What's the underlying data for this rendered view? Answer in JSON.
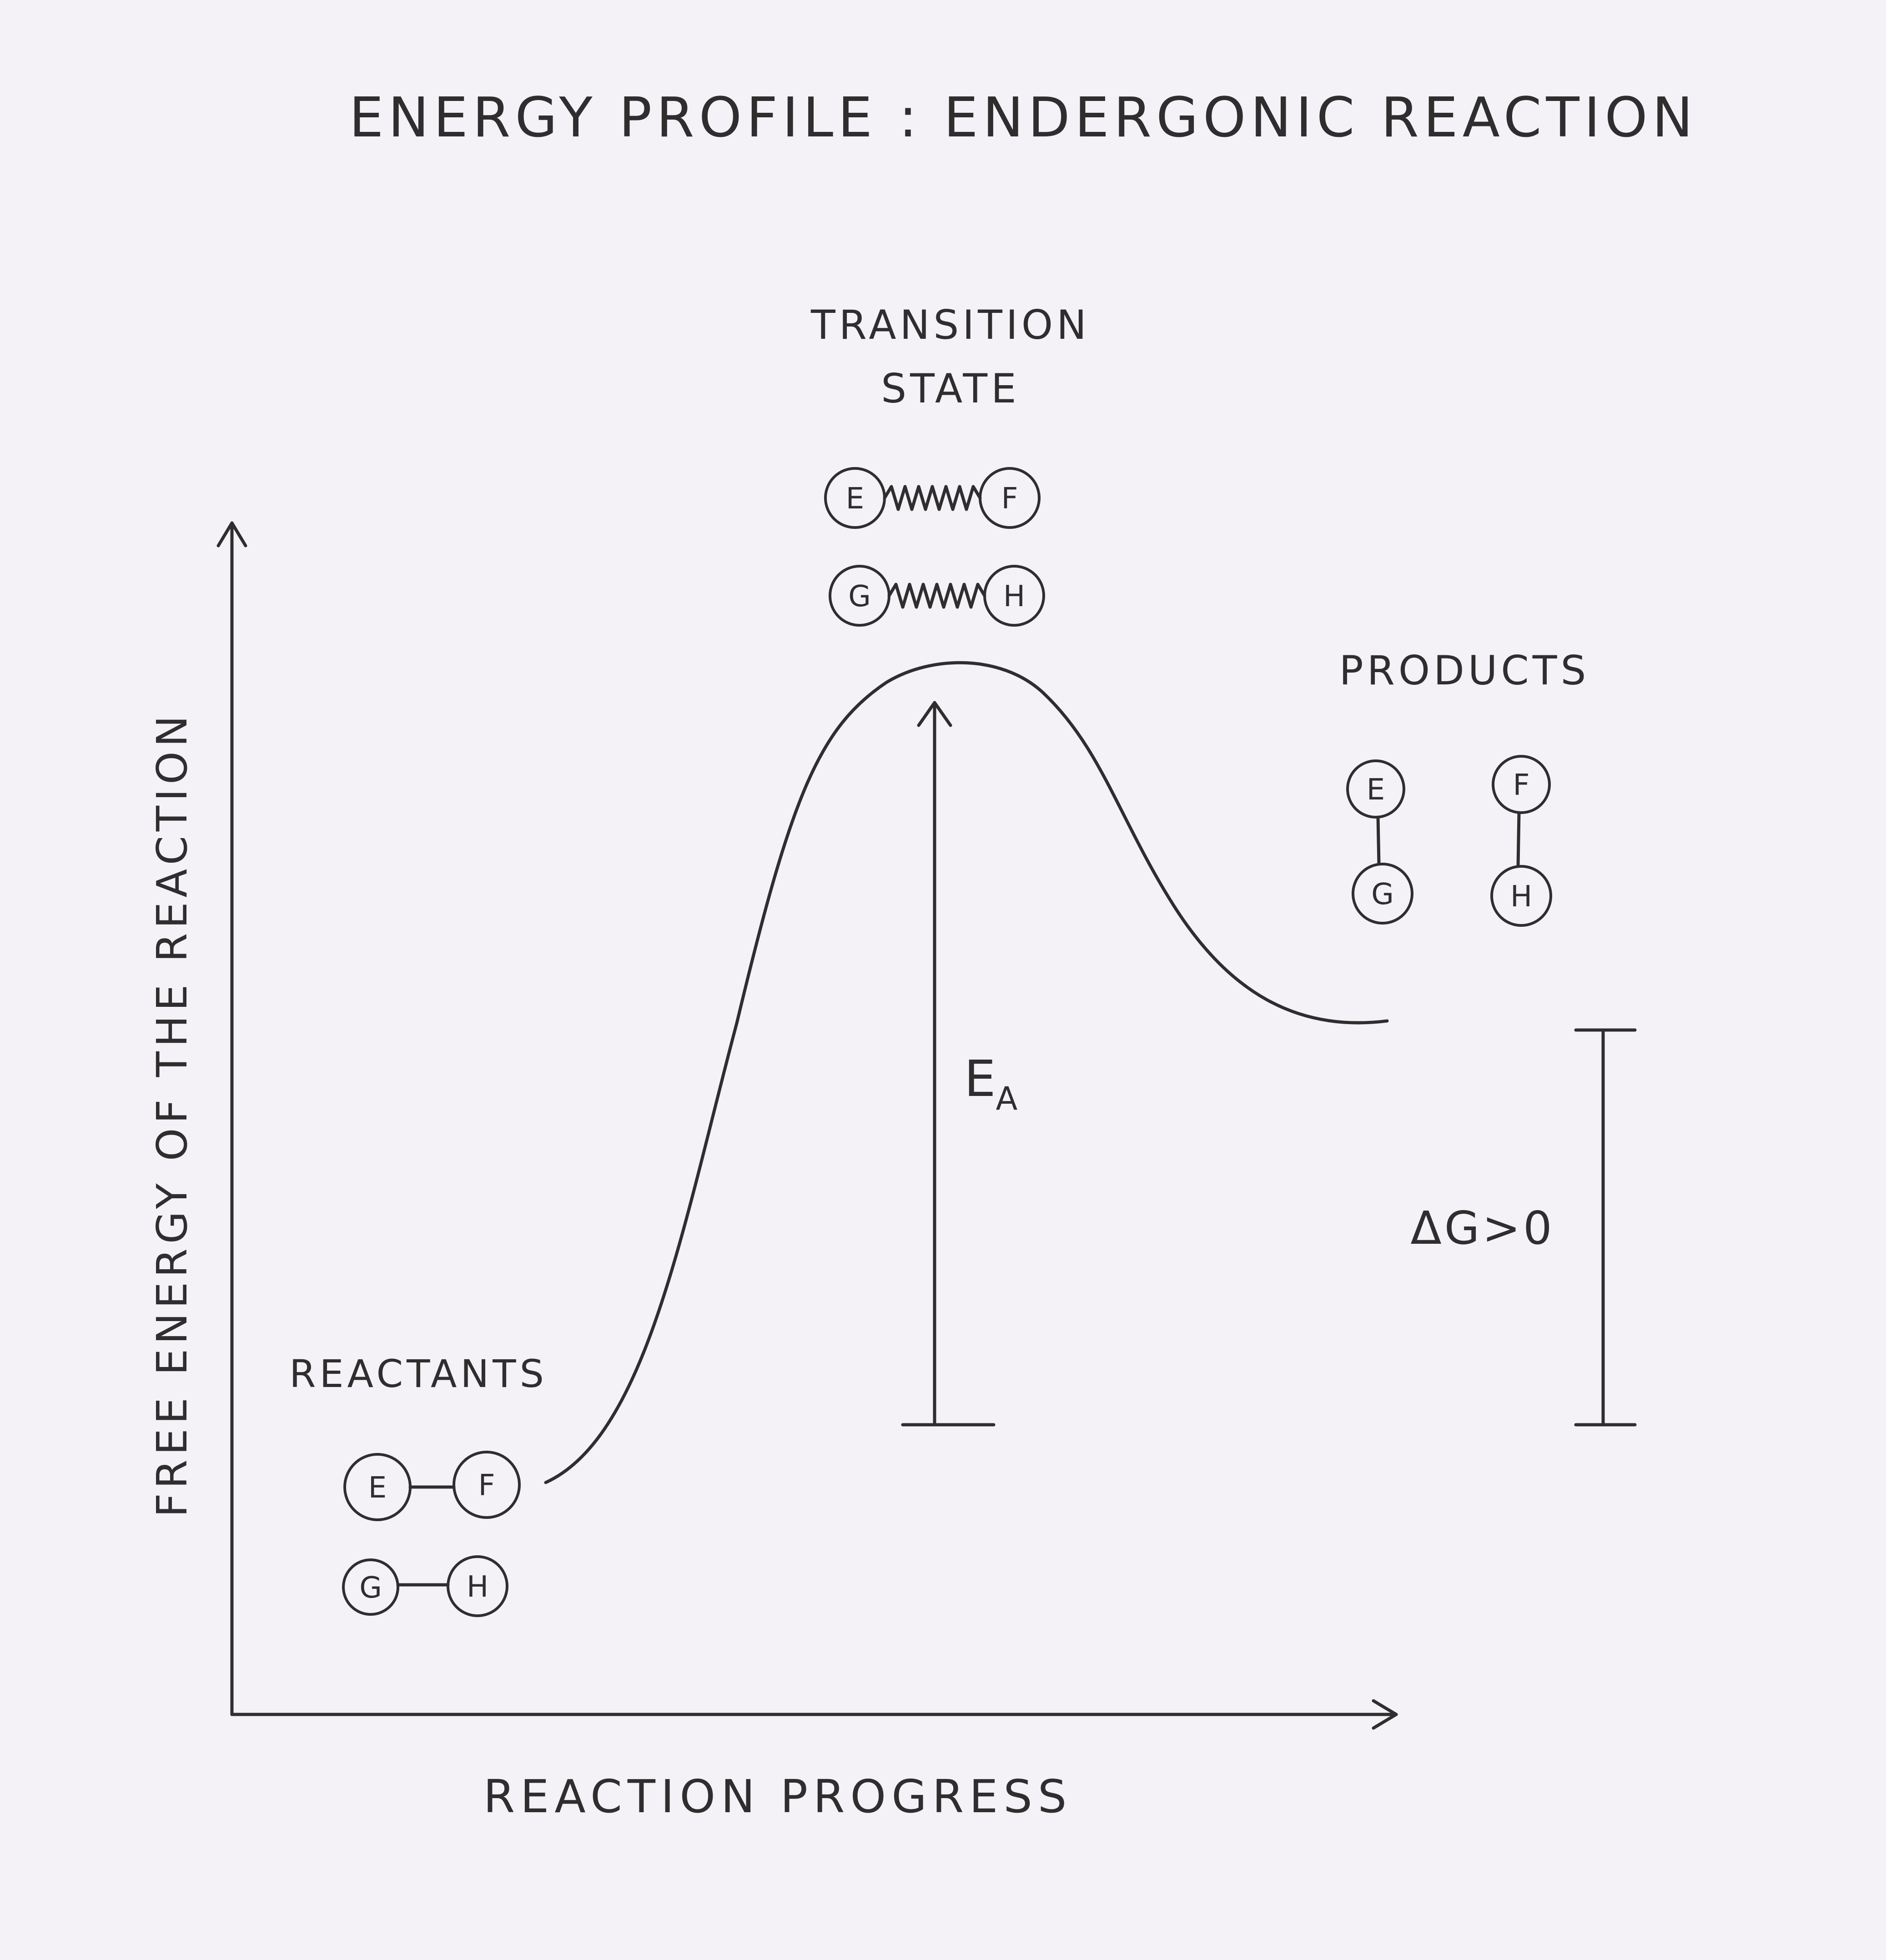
{
  "title": "ENERGY PROFILE : ENDERGONIC REACTION",
  "axes": {
    "y_label": "FREE ENERGY OF THE REACTION",
    "x_label": "REACTION PROGRESS"
  },
  "transition_state": {
    "label_line1": "TRANSITION",
    "label_line2": "STATE",
    "pairs": [
      [
        "E",
        "F"
      ],
      [
        "G",
        "H"
      ]
    ]
  },
  "reactants": {
    "label": "REACTANTS",
    "pairs": [
      [
        "E",
        "F"
      ],
      [
        "G",
        "H"
      ]
    ]
  },
  "products": {
    "label": "PRODUCTS",
    "pairs": [
      [
        "E",
        "G"
      ],
      [
        "F",
        "H"
      ]
    ]
  },
  "activation_energy": {
    "symbol": "E",
    "subscript": "A"
  },
  "delta_g": {
    "label": "ΔG>0"
  },
  "colors": {
    "ink": "#2e2e2e",
    "paper": "#f4f1f7"
  }
}
